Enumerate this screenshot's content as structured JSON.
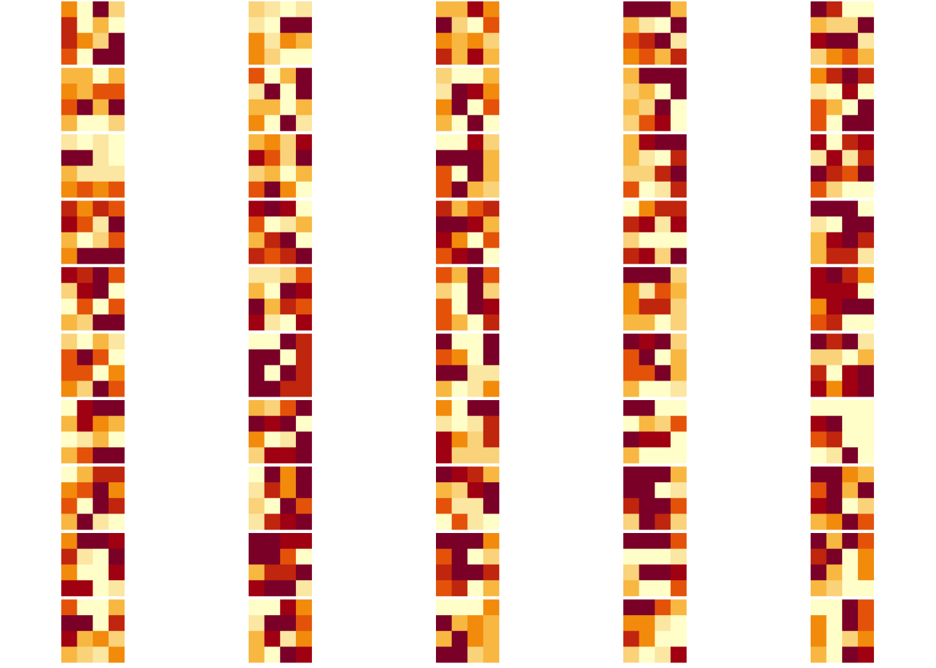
{
  "chart_data": {
    "type": "heatmap",
    "vlim": [
      0,
      8
    ],
    "colors": [
      "#fffdc8",
      "#fbe6a2",
      "#f9d27a",
      "#f7b741",
      "#f28a0c",
      "#e4520a",
      "#c0250e",
      "#9f0012",
      "#7a0028"
    ],
    "panels": [
      [
        [
          [
            4,
            0,
            8,
            2
          ],
          [
            6,
            0,
            3,
            0
          ],
          [
            6,
            4,
            2,
            8
          ],
          [
            5,
            0,
            8,
            8
          ]
        ],
        [
          [
            3,
            3,
            0,
            3
          ],
          [
            4,
            3,
            5,
            5
          ],
          [
            5,
            8,
            3,
            8
          ],
          [
            3,
            0,
            0,
            2
          ]
        ],
        [
          [
            1,
            0,
            1,
            0
          ],
          [
            8,
            8,
            1,
            0
          ],
          [
            3,
            1,
            1,
            1
          ],
          [
            4,
            5,
            4,
            5
          ]
        ],
        [
          [
            6,
            4,
            6,
            5
          ],
          [
            7,
            5,
            1,
            8
          ],
          [
            3,
            0,
            2,
            5
          ],
          [
            4,
            8,
            8,
            8
          ]
        ],
        [
          [
            7,
            6,
            8,
            5
          ],
          [
            2,
            7,
            8,
            0
          ],
          [
            0,
            5,
            0,
            5
          ],
          [
            3,
            2,
            8,
            8
          ]
        ],
        [
          [
            2,
            0,
            3,
            1
          ],
          [
            5,
            8,
            5,
            0
          ],
          [
            5,
            5,
            0,
            4
          ],
          [
            4,
            2,
            8,
            5
          ]
        ],
        [
          [
            0,
            7,
            8,
            8
          ],
          [
            3,
            7,
            4,
            3
          ],
          [
            0,
            1,
            3,
            0
          ],
          [
            3,
            5,
            8,
            8
          ]
        ],
        [
          [
            0,
            3,
            6,
            6
          ],
          [
            4,
            5,
            8,
            4
          ],
          [
            5,
            0,
            8,
            6
          ],
          [
            3,
            8,
            1,
            0
          ]
        ],
        [
          [
            4,
            8,
            8,
            7
          ],
          [
            6,
            1,
            0,
            8
          ],
          [
            4,
            0,
            0,
            7
          ],
          [
            7,
            7,
            0,
            1
          ]
        ],
        [
          [
            5,
            0,
            0,
            3
          ],
          [
            8,
            8,
            0,
            6
          ],
          [
            7,
            3,
            4,
            2
          ],
          [
            3,
            2,
            1,
            4
          ]
        ]
      ],
      [
        [
          [
            2,
            1,
            0,
            1
          ],
          [
            1,
            0,
            8,
            8
          ],
          [
            4,
            1,
            4,
            3
          ],
          [
            4,
            2,
            0,
            0
          ]
        ],
        [
          [
            5,
            0,
            3,
            8
          ],
          [
            1,
            8,
            0,
            8
          ],
          [
            3,
            3,
            0,
            3
          ],
          [
            4,
            0,
            8,
            1
          ]
        ],
        [
          [
            3,
            4,
            2,
            7
          ],
          [
            7,
            5,
            2,
            8
          ],
          [
            2,
            3,
            0,
            3
          ],
          [
            5,
            8,
            4,
            0
          ]
        ],
        [
          [
            7,
            8,
            7,
            0
          ],
          [
            5,
            0,
            1,
            3
          ],
          [
            3,
            6,
            8,
            0
          ],
          [
            6,
            5,
            6,
            8
          ]
        ],
        [
          [
            1,
            1,
            2,
            5
          ],
          [
            3,
            0,
            8,
            7
          ],
          [
            8,
            3,
            6,
            5
          ],
          [
            7,
            1,
            0,
            7
          ]
        ],
        [
          [
            0,
            0,
            8,
            6
          ],
          [
            8,
            8,
            0,
            6
          ],
          [
            8,
            0,
            8,
            6
          ],
          [
            8,
            8,
            6,
            6
          ]
        ],
        [
          [
            3,
            2,
            5,
            8
          ],
          [
            8,
            7,
            8,
            0
          ],
          [
            4,
            0,
            1,
            8
          ],
          [
            2,
            7,
            7,
            8
          ]
        ],
        [
          [
            0,
            8,
            4,
            8
          ],
          [
            1,
            6,
            4,
            8
          ],
          [
            2,
            0,
            8,
            5
          ],
          [
            1,
            6,
            7,
            8
          ]
        ],
        [
          [
            8,
            8,
            7,
            7
          ],
          [
            8,
            8,
            5,
            0
          ],
          [
            3,
            6,
            6,
            8
          ],
          [
            7,
            8,
            8,
            1
          ]
        ],
        [
          [
            0,
            0,
            7,
            4
          ],
          [
            1,
            8,
            8,
            5
          ],
          [
            3,
            7,
            1,
            4
          ],
          [
            3,
            0,
            8,
            7
          ]
        ]
      ],
      [
        [
          [
            3,
            3,
            7,
            4
          ],
          [
            8,
            2,
            0,
            5
          ],
          [
            4,
            3,
            4,
            2
          ],
          [
            6,
            3,
            7,
            3
          ]
        ],
        [
          [
            2,
            0,
            0,
            3
          ],
          [
            1,
            8,
            7,
            4
          ],
          [
            4,
            8,
            0,
            5
          ],
          [
            3,
            0,
            8,
            0
          ]
        ],
        [
          [
            0,
            0,
            7,
            2
          ],
          [
            8,
            8,
            8,
            3
          ],
          [
            5,
            0,
            8,
            3
          ],
          [
            5,
            8,
            3,
            2
          ]
        ],
        [
          [
            6,
            3,
            5,
            6
          ],
          [
            8,
            8,
            7,
            3
          ],
          [
            7,
            4,
            0,
            5
          ],
          [
            5,
            7,
            8,
            0
          ]
        ],
        [
          [
            5,
            3,
            8,
            5
          ],
          [
            2,
            0,
            8,
            2
          ],
          [
            5,
            0,
            8,
            7
          ],
          [
            5,
            3,
            0,
            6
          ]
        ],
        [
          [
            8,
            0,
            0,
            8
          ],
          [
            5,
            4,
            0,
            8
          ],
          [
            8,
            8,
            1,
            1
          ],
          [
            3,
            0,
            1,
            4
          ]
        ],
        [
          [
            4,
            0,
            8,
            8
          ],
          [
            1,
            0,
            1,
            6
          ],
          [
            7,
            4,
            2,
            6
          ],
          [
            7,
            2,
            2,
            2
          ]
        ],
        [
          [
            8,
            7,
            6,
            3
          ],
          [
            3,
            2,
            7,
            8
          ],
          [
            5,
            1,
            1,
            8
          ],
          [
            0,
            5,
            1,
            0
          ]
        ],
        [
          [
            8,
            8,
            8,
            4
          ],
          [
            5,
            8,
            0,
            2
          ],
          [
            6,
            8,
            8,
            6
          ],
          [
            5,
            6,
            0,
            3
          ]
        ],
        [
          [
            0,
            0,
            0,
            4
          ],
          [
            8,
            3,
            4,
            3
          ],
          [
            3,
            8,
            4,
            3
          ],
          [
            8,
            8,
            2,
            3
          ]
        ]
      ],
      [
        [
          [
            8,
            8,
            8,
            3
          ],
          [
            3,
            1,
            0,
            8
          ],
          [
            5,
            6,
            8,
            1
          ],
          [
            4,
            5,
            3,
            6
          ]
        ],
        [
          [
            3,
            8,
            8,
            8
          ],
          [
            2,
            3,
            0,
            8
          ],
          [
            3,
            2,
            8,
            0
          ],
          [
            2,
            5,
            7,
            0
          ]
        ],
        [
          [
            3,
            7,
            8,
            8
          ],
          [
            3,
            1,
            0,
            6
          ],
          [
            2,
            2,
            6,
            8
          ],
          [
            5,
            0,
            1,
            6
          ]
        ],
        [
          [
            0,
            4,
            6,
            6
          ],
          [
            6,
            7,
            1,
            7
          ],
          [
            2,
            0,
            0,
            0
          ],
          [
            6,
            7,
            2,
            8
          ]
        ],
        [
          [
            8,
            8,
            8,
            2
          ],
          [
            4,
            1,
            5,
            3
          ],
          [
            4,
            6,
            6,
            2
          ],
          [
            3,
            3,
            0,
            2
          ]
        ],
        [
          [
            8,
            7,
            8,
            2
          ],
          [
            5,
            8,
            0,
            3
          ],
          [
            5,
            5,
            8,
            3
          ],
          [
            3,
            0,
            0,
            1
          ]
        ],
        [
          [
            8,
            8,
            0,
            0
          ],
          [
            0,
            3,
            2,
            5
          ],
          [
            8,
            7,
            7,
            0
          ],
          [
            3,
            0,
            0,
            0
          ]
        ],
        [
          [
            8,
            8,
            8,
            3
          ],
          [
            8,
            8,
            0,
            1
          ],
          [
            6,
            8,
            8,
            5
          ],
          [
            2,
            8,
            6,
            2
          ]
        ],
        [
          [
            8,
            8,
            8,
            5
          ],
          [
            0,
            0,
            0,
            1
          ],
          [
            2,
            8,
            8,
            7
          ],
          [
            3,
            0,
            0,
            5
          ]
        ],
        [
          [
            8,
            8,
            5,
            3
          ],
          [
            4,
            4,
            1,
            0
          ],
          [
            6,
            4,
            0,
            0
          ],
          [
            2,
            0,
            1,
            7
          ]
        ]
      ],
      [
        [
          [
            8,
            6,
            0,
            0
          ],
          [
            3,
            2,
            2,
            8
          ],
          [
            7,
            8,
            8,
            1
          ],
          [
            2,
            4,
            5,
            3
          ]
        ],
        [
          [
            4,
            6,
            8,
            6
          ],
          [
            1,
            0,
            7,
            0
          ],
          [
            5,
            3,
            0,
            8
          ],
          [
            5,
            0,
            8,
            8
          ]
        ],
        [
          [
            7,
            0,
            6,
            7
          ],
          [
            1,
            7,
            1,
            6
          ],
          [
            8,
            6,
            5,
            8
          ],
          [
            5,
            2,
            0,
            0
          ]
        ],
        [
          [
            8,
            8,
            8,
            0
          ],
          [
            1,
            0,
            8,
            8
          ],
          [
            3,
            7,
            8,
            6
          ],
          [
            3,
            6,
            6,
            1
          ]
        ],
        [
          [
            7,
            8,
            6,
            4
          ],
          [
            7,
            7,
            7,
            0
          ],
          [
            4,
            7,
            8,
            8
          ],
          [
            5,
            6,
            0,
            0
          ]
        ],
        [
          [
            8,
            6,
            8,
            1
          ],
          [
            2,
            2,
            0,
            3
          ],
          [
            6,
            0,
            7,
            8
          ],
          [
            7,
            4,
            7,
            8
          ]
        ],
        [
          [
            0,
            0,
            0,
            0
          ],
          [
            7,
            8,
            0,
            0
          ],
          [
            5,
            6,
            0,
            0
          ],
          [
            0,
            1,
            8,
            0
          ]
        ],
        [
          [
            8,
            8,
            4,
            3
          ],
          [
            5,
            8,
            3,
            8
          ],
          [
            7,
            8,
            0,
            2
          ],
          [
            3,
            4,
            8,
            5
          ]
        ],
        [
          [
            8,
            3,
            8,
            5
          ],
          [
            6,
            8,
            0,
            4
          ],
          [
            8,
            3,
            0,
            4
          ],
          [
            3,
            2,
            0,
            0
          ]
        ],
        [
          [
            0,
            0,
            8,
            5
          ],
          [
            4,
            0,
            8,
            5
          ],
          [
            4,
            0,
            2,
            4
          ],
          [
            3,
            0,
            8,
            7
          ]
        ]
      ]
    ]
  }
}
